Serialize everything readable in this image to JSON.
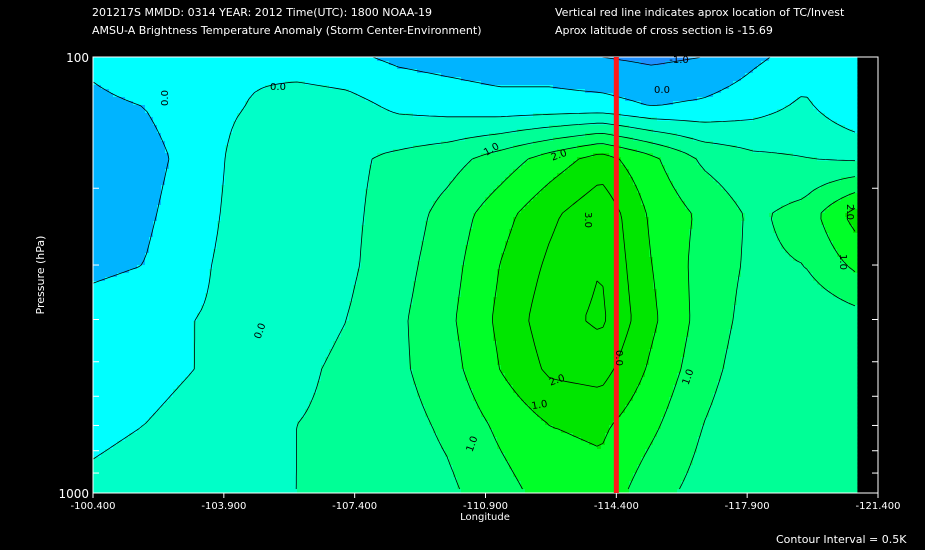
{
  "header": {
    "line1": "201217S  MMDD: 0314 YEAR: 2012 Time(UTC): 1800 NOAA-19",
    "line2": "AMSU-A Brightness Temperature Anomaly (Storm Center-Environment)",
    "line3": "Vertical red line indicates aprox location of TC/Invest",
    "line4": "Aprox latitude of cross section is -15.69"
  },
  "footer": {
    "contour_interval": "Contour Interval = 0.5K"
  },
  "colors": {
    "background": "#000000",
    "frame": "#ffffff",
    "tc_line": "#ff1a1a",
    "levels": [
      "#1e90ff",
      "#00b4ff",
      "#00ffff",
      "#00ffc8",
      "#00ff96",
      "#00ff64",
      "#00ff28",
      "#00e600"
    ]
  },
  "chart_data": {
    "type": "contour",
    "xlabel": "Longitude",
    "ylabel": "Pressure (hPa)",
    "xlim": [
      -100.4,
      -121.4
    ],
    "ylim": [
      1000,
      100
    ],
    "y_scale": "log",
    "x_ticks": [
      "-100.400",
      "-103.900",
      "-107.400",
      "-110.900",
      "-114.400",
      "-117.900",
      "-121.400"
    ],
    "x_tick_values": [
      -100.4,
      -103.9,
      -107.4,
      -110.9,
      -114.4,
      -117.9,
      -121.4
    ],
    "y_tick_labels": [
      "100",
      "1000"
    ],
    "y_tick_values": [
      100,
      1000
    ],
    "contour_interval_K": 0.5,
    "tc_longitude": -114.4,
    "contour_labels": [
      "0.0",
      "0.0",
      "0.0",
      "-1.0",
      "0.0",
      "1.0",
      "2.0",
      "3.0",
      "2.0",
      "1.0",
      "1.0",
      "1.0",
      "2.0",
      "1.0",
      "0.0"
    ],
    "field": {
      "x": [
        -100.4,
        -101.8,
        -103.2,
        -104.6,
        -106.0,
        -107.4,
        -108.8,
        -110.2,
        -111.6,
        -113.0,
        -114.4,
        -115.8,
        -117.2,
        -118.6,
        -120.0,
        -121.4
      ],
      "p": [
        100,
        130,
        170,
        230,
        300,
        400,
        520,
        700,
        1000
      ],
      "anomaly_K": [
        [
          -0.4,
          -0.2,
          0.0,
          -0.1,
          -0.3,
          -0.4,
          -0.6,
          -0.7,
          -0.8,
          -0.8,
          -1.0,
          -1.1,
          -1.0,
          -0.6,
          -0.3,
          -0.4
        ],
        [
          -0.6,
          -0.5,
          -0.2,
          0.0,
          0.3,
          0.2,
          -0.1,
          -0.2,
          -0.3,
          -0.3,
          -0.3,
          -0.5,
          -0.4,
          -0.2,
          0.1,
          -0.4
        ],
        [
          -0.8,
          -0.7,
          -0.3,
          0.2,
          0.5,
          0.4,
          0.6,
          0.8,
          1.2,
          1.7,
          2.2,
          1.6,
          0.9,
          0.6,
          0.5,
          0.4
        ],
        [
          -0.7,
          -0.6,
          -0.2,
          0.2,
          0.4,
          0.4,
          0.7,
          1.2,
          1.8,
          2.4,
          2.9,
          1.9,
          1.4,
          0.9,
          1.2,
          2.2
        ],
        [
          -0.6,
          -0.5,
          -0.1,
          0.2,
          0.3,
          0.4,
          0.8,
          1.3,
          2.0,
          2.6,
          3.0,
          2.0,
          1.3,
          0.9,
          1.0,
          1.6
        ],
        [
          -0.3,
          -0.2,
          0.0,
          0.1,
          0.3,
          0.5,
          0.9,
          1.4,
          2.1,
          2.8,
          3.1,
          2.1,
          1.3,
          0.8,
          0.6,
          0.8
        ],
        [
          -0.2,
          -0.1,
          0.0,
          0.2,
          0.4,
          0.6,
          0.9,
          1.3,
          2.0,
          2.6,
          2.7,
          1.9,
          1.2,
          0.7,
          0.5,
          0.6
        ],
        [
          -0.1,
          0.0,
          0.1,
          0.3,
          0.5,
          0.6,
          0.8,
          1.1,
          1.6,
          2.0,
          2.1,
          1.6,
          1.0,
          0.6,
          0.5,
          0.5
        ],
        [
          0.1,
          0.2,
          0.3,
          0.4,
          0.5,
          0.6,
          0.7,
          0.9,
          1.3,
          1.7,
          1.8,
          1.2,
          0.8,
          0.6,
          0.5,
          0.5
        ]
      ]
    }
  }
}
